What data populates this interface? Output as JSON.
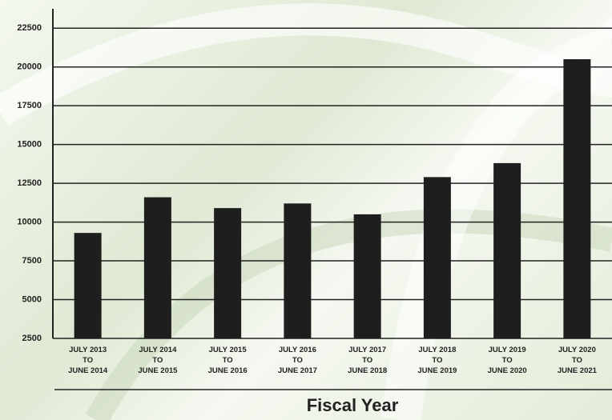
{
  "chart_data": {
    "type": "bar",
    "x_label": "Fiscal Year",
    "categories": [
      "JULY 2013\nTO\nJUNE 2014",
      "JULY 2014\nTO\nJUNE 2015",
      "JULY 2015\nTO\nJUNE 2016",
      "JULY 2016\nTO\nJUNE 2017",
      "JULY 2017\nTO\nJUNE 2018",
      "JULY 2018\nTO\nJUNE 2019",
      "JULY 2019\nTO\nJUNE 2020",
      "JULY 2020\nTO\nJUNE 2021"
    ],
    "values": [
      9300,
      11600,
      10900,
      11200,
      10500,
      12900,
      13800,
      20500
    ],
    "color": "#1e1e1e",
    "ylim": [
      2500,
      23750
    ],
    "yticks": [
      2500,
      5000,
      7500,
      10000,
      12500,
      15000,
      17500,
      20000,
      22500
    ],
    "grid": true
  }
}
